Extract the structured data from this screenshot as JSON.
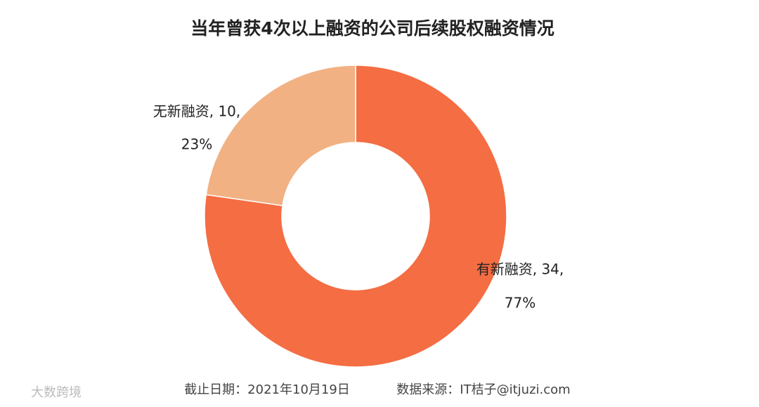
{
  "chart_data": {
    "type": "donut",
    "title": "当年曾获4次以上融资的公司后续股权融资情况",
    "categories": [
      "有新融资",
      "无新融资"
    ],
    "values": [
      34,
      10
    ],
    "value_labels": [
      "有新融资, 34,",
      "无新融资, 10,"
    ],
    "percents": [
      77,
      23
    ],
    "percent_labels": [
      "77%",
      "23%"
    ],
    "colors": [
      "#f46d43",
      "#f2b183"
    ]
  },
  "footer": {
    "date": "截止日期：2021年10月19日",
    "source": "数据来源：IT桔子@itjuzi.com",
    "watermark": "大数跨境"
  }
}
